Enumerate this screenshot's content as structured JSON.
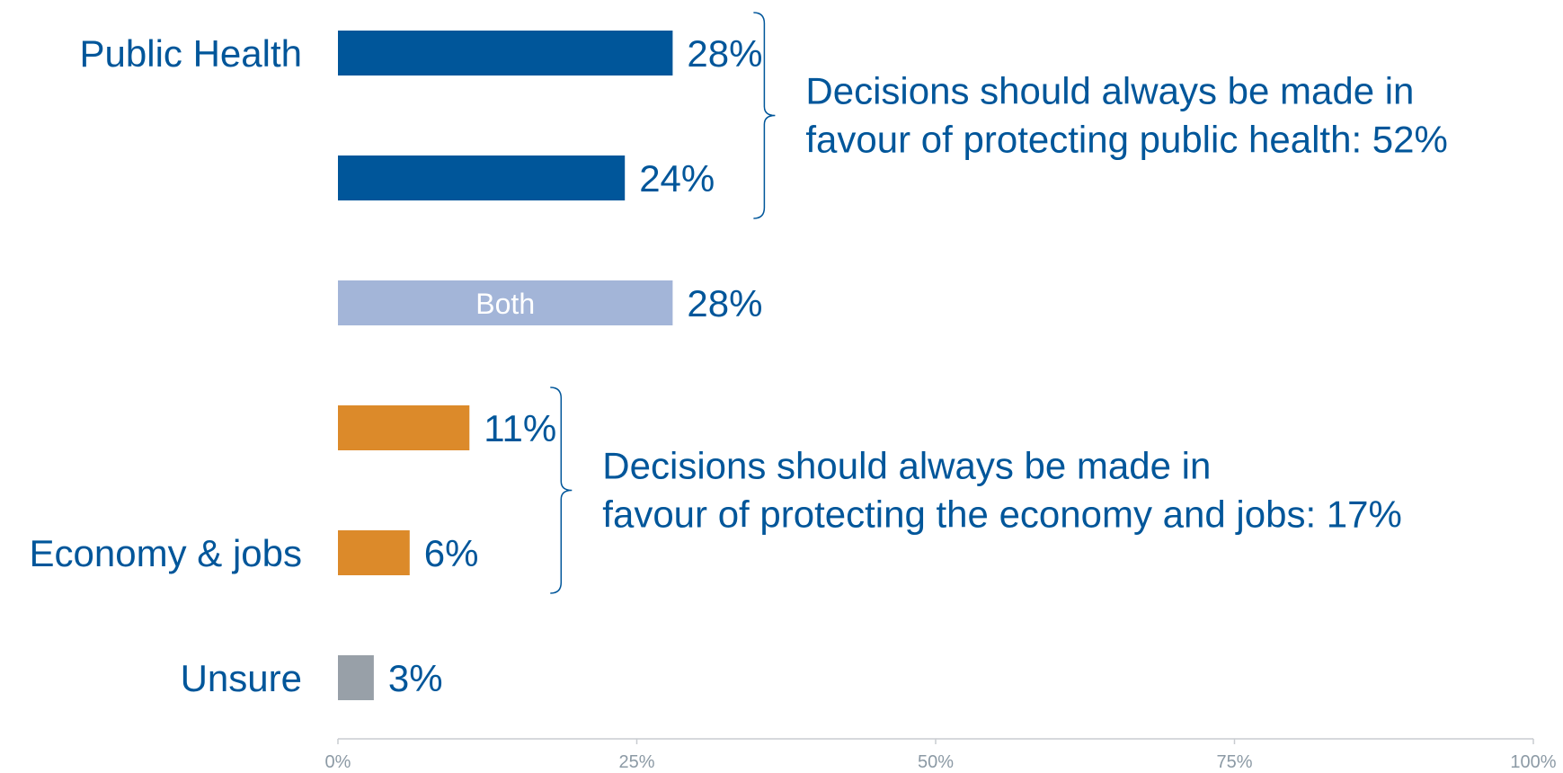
{
  "chart_data": {
    "type": "bar",
    "orientation": "horizontal",
    "xlim": [
      0,
      100
    ],
    "ticks": [
      "0%",
      "25%",
      "50%",
      "75%",
      "100%"
    ],
    "bars": [
      {
        "category": "Public Health",
        "value": 28,
        "value_label": "28%",
        "inner_label": "",
        "color": "#00569a"
      },
      {
        "category": "",
        "value": 24,
        "value_label": "24%",
        "inner_label": "",
        "color": "#00569a"
      },
      {
        "category": "",
        "value": 28,
        "value_label": "28%",
        "inner_label": "Both",
        "color": "#a3b5d8"
      },
      {
        "category": "",
        "value": 11,
        "value_label": "11%",
        "inner_label": "",
        "color": "#dc8a2a"
      },
      {
        "category": "Economy & jobs",
        "value": 6,
        "value_label": "6%",
        "inner_label": "",
        "color": "#dc8a2a"
      },
      {
        "category": "Unsure",
        "value": 3,
        "value_label": "3%",
        "inner_label": "",
        "color": "#98a0a8"
      }
    ],
    "annotations": [
      {
        "from_bar": 0,
        "to_bar": 1,
        "lines": [
          "Decisions should always be made in",
          "favour of protecting public health: 52%"
        ]
      },
      {
        "from_bar": 3,
        "to_bar": 4,
        "lines": [
          "Decisions should always be made in",
          "favour of protecting the economy and jobs: 17%"
        ]
      }
    ],
    "grid": false,
    "legend": "none"
  }
}
